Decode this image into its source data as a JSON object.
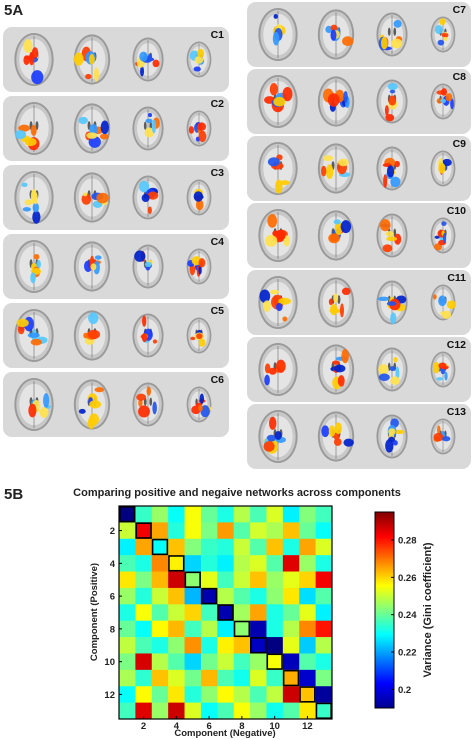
{
  "panel_a_label": "5A",
  "panel_b_label": "5B",
  "components_left": [
    "C1",
    "C2",
    "C3",
    "C4",
    "C5",
    "C6"
  ],
  "components_right": [
    "C7",
    "C8",
    "C9",
    "C10",
    "C11",
    "C12",
    "C13"
  ],
  "chart_data": {
    "type": "heatmap",
    "title": "Comparing positive and negaive networks across components",
    "xlabel": "Component (Negative)",
    "ylabel": "Component (Positive)",
    "x_ticks": [
      "2",
      "4",
      "6",
      "8",
      "10",
      "12"
    ],
    "y_ticks": [
      "2",
      "4",
      "6",
      "8",
      "10",
      "12"
    ],
    "colorbar_label": "Variance (Gini coefficient)",
    "colorbar_ticks": [
      "0.2",
      "0.22",
      "0.24",
      "0.26",
      "0.28"
    ],
    "colorbar_range": [
      0.19,
      0.295
    ],
    "colormap": "jet",
    "diagonal_outlined": true,
    "values": [
      [
        0.19,
        0.235,
        0.245,
        0.23,
        0.255,
        0.24,
        0.232,
        0.248,
        0.237,
        0.252,
        0.228,
        0.243,
        0.236
      ],
      [
        0.25,
        0.283,
        0.265,
        0.233,
        0.255,
        0.242,
        0.266,
        0.238,
        0.251,
        0.247,
        0.262,
        0.24,
        0.23
      ],
      [
        0.228,
        0.265,
        0.23,
        0.262,
        0.243,
        0.235,
        0.233,
        0.25,
        0.238,
        0.262,
        0.232,
        0.265,
        0.252
      ],
      [
        0.237,
        0.232,
        0.268,
        0.257,
        0.225,
        0.233,
        0.228,
        0.248,
        0.252,
        0.238,
        0.285,
        0.245,
        0.232
      ],
      [
        0.258,
        0.242,
        0.263,
        0.287,
        0.244,
        0.253,
        0.236,
        0.25,
        0.262,
        0.245,
        0.253,
        0.26,
        0.283
      ],
      [
        0.245,
        0.233,
        0.25,
        0.262,
        0.222,
        0.195,
        0.248,
        0.238,
        0.232,
        0.244,
        0.258,
        0.226,
        0.238
      ],
      [
        0.232,
        0.255,
        0.238,
        0.25,
        0.26,
        0.236,
        0.195,
        0.246,
        0.265,
        0.232,
        0.24,
        0.253,
        0.228
      ],
      [
        0.24,
        0.23,
        0.256,
        0.263,
        0.236,
        0.248,
        0.228,
        0.244,
        0.195,
        0.232,
        0.248,
        0.268,
        0.28
      ],
      [
        0.249,
        0.237,
        0.232,
        0.244,
        0.267,
        0.232,
        0.257,
        0.262,
        0.197,
        0.19,
        0.253,
        0.224,
        0.248
      ],
      [
        0.242,
        0.286,
        0.248,
        0.238,
        0.225,
        0.241,
        0.25,
        0.236,
        0.245,
        0.255,
        0.196,
        0.238,
        0.232
      ],
      [
        0.247,
        0.234,
        0.262,
        0.252,
        0.241,
        0.263,
        0.237,
        0.231,
        0.252,
        0.235,
        0.264,
        0.198,
        0.242
      ],
      [
        0.23,
        0.256,
        0.24,
        0.258,
        0.233,
        0.244,
        0.256,
        0.248,
        0.237,
        0.249,
        0.287,
        0.262,
        0.193
      ],
      [
        0.236,
        0.285,
        0.245,
        0.287,
        0.252,
        0.23,
        0.237,
        0.255,
        0.245,
        0.231,
        0.238,
        0.258,
        0.235
      ]
    ]
  }
}
